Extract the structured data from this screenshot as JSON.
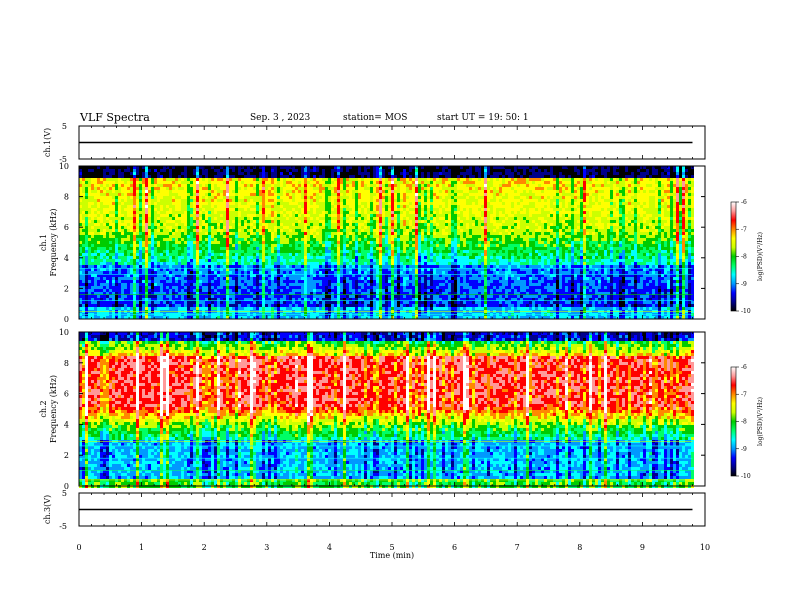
{
  "header": {
    "title": "VLF Spectra",
    "date": "Sep. 3 , 2023",
    "station": "station= MOS",
    "start": "start UT = 19: 50: 1"
  },
  "chart_data": [
    {
      "type": "line",
      "panel": "ch1-voltage",
      "ylabel": "ch.1(V)",
      "ylim": [
        -5,
        5
      ],
      "yticks": [
        "5",
        "-5"
      ],
      "series": [
        {
          "x": [
            0,
            9.8
          ],
          "values": [
            0,
            0
          ]
        }
      ]
    },
    {
      "type": "heatmap",
      "panel": "ch1-spectrogram",
      "ylabel_channel": "ch.1",
      "ylabel": "Frequency (kHz)",
      "ylim": [
        0,
        10
      ],
      "yticks": [
        "0",
        "2",
        "4",
        "6",
        "8",
        "10"
      ],
      "colorbar": {
        "label": "log(PSD)(V²/Hz)",
        "range": [
          -10,
          -6
        ],
        "ticks": [
          "-6",
          "-7",
          "-8",
          "-9",
          "-10"
        ]
      }
    },
    {
      "type": "heatmap",
      "panel": "ch2-spectrogram",
      "ylabel_channel": "ch.2",
      "ylabel": "Frequency (kHz)",
      "ylim": [
        0,
        10
      ],
      "yticks": [
        "0",
        "2",
        "4",
        "6",
        "8",
        "10"
      ],
      "colorbar": {
        "label": "log(PSD)(V²/Hz)",
        "range": [
          -10,
          -6
        ],
        "ticks": [
          "-6",
          "-7",
          "-8",
          "-9",
          "-10"
        ]
      }
    },
    {
      "type": "line",
      "panel": "ch3-voltage",
      "ylabel": "ch.3(V)",
      "ylim": [
        -5,
        5
      ],
      "yticks": [
        "5",
        "-5"
      ],
      "series": [
        {
          "x": [
            0,
            9.8
          ],
          "values": [
            0,
            0
          ]
        }
      ]
    }
  ],
  "xaxis": {
    "label": "Time (min)",
    "range": [
      0,
      10
    ],
    "ticks": [
      "0",
      "1",
      "2",
      "3",
      "4",
      "5",
      "6",
      "7",
      "8",
      "9",
      "10"
    ],
    "data_end": 9.8
  },
  "colors": {
    "scale": [
      "#000000",
      "#00008b",
      "#0000ff",
      "#0099ff",
      "#00ffff",
      "#00ff66",
      "#00cc00",
      "#ccff00",
      "#ffff00",
      "#ff8800",
      "#ff0000",
      "#ff9999",
      "#ffffff"
    ]
  }
}
